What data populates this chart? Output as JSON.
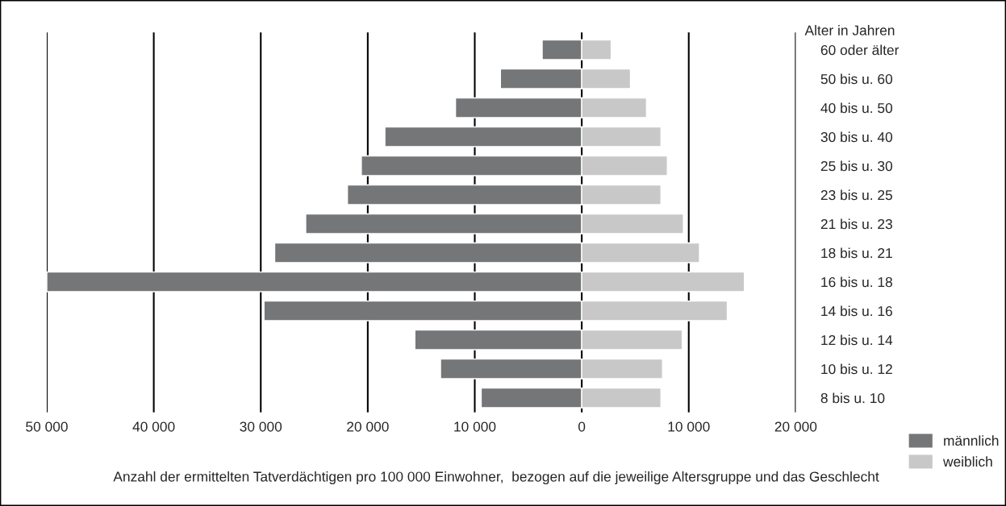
{
  "chart_data": {
    "type": "bar",
    "orientation": "horizontal",
    "stacked": true,
    "categories": [
      "60 oder älter",
      "50 bis u. 60",
      "40 bis u. 50",
      "30 bis u. 40",
      "25 bis u. 30",
      "23 bis u. 25",
      "21 bis u. 23",
      "18 bis u. 21",
      "16 bis u. 18",
      "14 bis u. 16",
      "12 bis u. 14",
      "10 bis u. 12",
      "8 bis u. 10"
    ],
    "series": [
      {
        "name": "männlich",
        "color": "#757678",
        "values": [
          -3700,
          -7600,
          -11800,
          -18400,
          -20600,
          -21900,
          -25800,
          -28700,
          -50000,
          -29700,
          -15600,
          -13200,
          -9400
        ]
      },
      {
        "name": "weiblich",
        "color": "#c8c8c8",
        "values": [
          2750,
          4550,
          6050,
          7400,
          8000,
          7400,
          9500,
          11000,
          15200,
          13600,
          9400,
          7550,
          7400
        ]
      }
    ],
    "xlim": [
      -50000,
      20000
    ],
    "xticks": [
      {
        "value": -50000,
        "label": "50 000"
      },
      {
        "value": -40000,
        "label": "40 000"
      },
      {
        "value": -30000,
        "label": "30 000"
      },
      {
        "value": -20000,
        "label": "20 000"
      },
      {
        "value": -10000,
        "label": "10 000"
      },
      0,
      {
        "value": 10000,
        "label": "10 000"
      },
      {
        "value": 20000,
        "label": "20 000"
      }
    ],
    "ylabel": "Alter in Jahren",
    "xlabel": "Anzahl der ermittelten Tatverdächtigen pro 100 000 Einwohner,  bezogen auf die jeweilige Altersgruppe und das Geschlecht",
    "grid": "x",
    "legend": "bottom right"
  }
}
